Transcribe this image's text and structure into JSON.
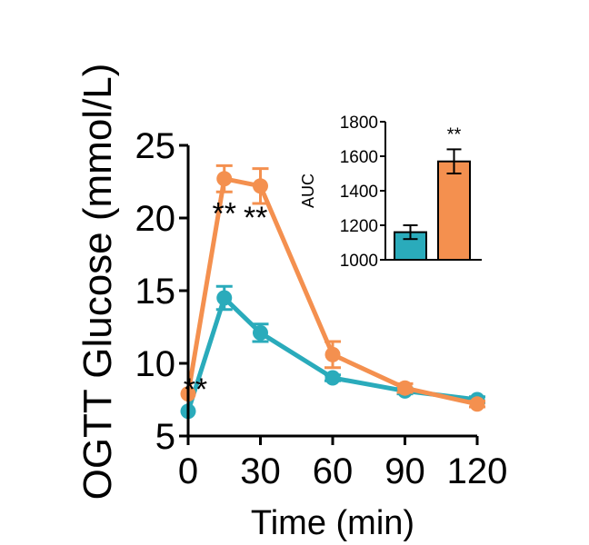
{
  "colors": {
    "series_a": "#2AABBB",
    "series_b": "#F4904F",
    "axis": "#000000"
  },
  "chart_data": [
    {
      "type": "line",
      "xlabel": "Time (min)",
      "ylabel": "OGTT Glucose (mmol/L)",
      "x": [
        0,
        15,
        30,
        60,
        90,
        120
      ],
      "xticks": [
        "0",
        "30",
        "60",
        "90",
        "120"
      ],
      "xtick_values": [
        0,
        30,
        60,
        90,
        120
      ],
      "yticks": [
        "5",
        "10",
        "15",
        "20",
        "25"
      ],
      "ytick_values": [
        5,
        10,
        15,
        20,
        25
      ],
      "xlim": [
        0,
        120
      ],
      "ylim": [
        5,
        25
      ],
      "grid": false,
      "series": [
        {
          "values": [
            6.7,
            14.5,
            12.1,
            9.0,
            8.1,
            7.5
          ],
          "errors": [
            0,
            0.8,
            0.6,
            0.2,
            0.2,
            0.2
          ]
        },
        {
          "values": [
            7.9,
            22.7,
            22.2,
            10.6,
            8.3,
            7.2
          ],
          "errors": [
            0,
            0.9,
            1.2,
            0.9,
            0.3,
            0.2
          ]
        }
      ],
      "annotations": [
        {
          "text": "**",
          "x": 15,
          "y": 19.6
        },
        {
          "text": "**",
          "x": 28,
          "y": 19.3
        },
        {
          "text": "**",
          "x": 3,
          "y": 7.5
        }
      ]
    },
    {
      "type": "bar",
      "ylabel": "AUC",
      "categories": [
        "",
        ""
      ],
      "ylim": [
        1000,
        1800
      ],
      "yticks": [
        "1000",
        "1200",
        "1400",
        "1600",
        "1800"
      ],
      "ytick_values": [
        1000,
        1200,
        1400,
        1600,
        1800
      ],
      "series": [
        {
          "values": [
            1160,
            1570
          ],
          "errors": [
            40,
            70
          ]
        }
      ],
      "annotations": [
        {
          "text": "**",
          "bar": 1
        }
      ]
    }
  ]
}
